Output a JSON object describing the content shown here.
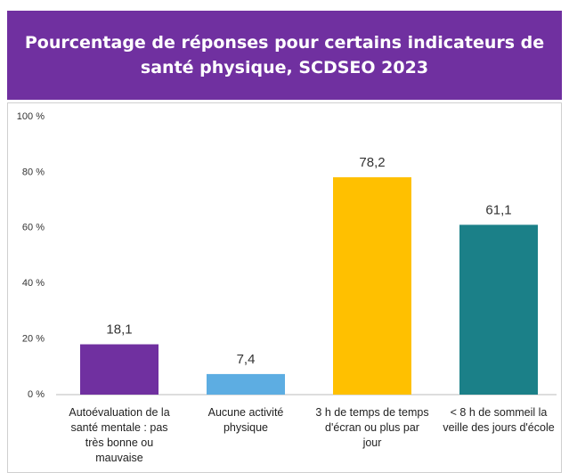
{
  "chart_data": {
    "type": "bar",
    "title": "Pourcentage de réponses pour certains indicateurs de santé physique, SCDSEO 2023",
    "categories": [
      "Autoévaluation de la santé mentale : pas très bonne ou mauvaise",
      "Aucune activité physique",
      "3 h de temps de temps d'écran ou plus par jour",
      "< 8 h de sommeil la veille des jours d'école"
    ],
    "values": [
      18.1,
      7.4,
      78.2,
      61.1
    ],
    "value_labels": [
      "18,1",
      "7,4",
      "78,2",
      "61,1"
    ],
    "colors": [
      "#7030a0",
      "#5dade2",
      "#ffc000",
      "#1b8088"
    ],
    "ylim": [
      0,
      100
    ],
    "yticks": [
      {
        "value": 0,
        "label": "0 %"
      },
      {
        "value": 20,
        "label": "20 %"
      },
      {
        "value": 40,
        "label": "40 %"
      },
      {
        "value": 60,
        "label": "60 %"
      },
      {
        "value": 80,
        "label": "80 %"
      },
      {
        "value": 100,
        "label": "100 %"
      }
    ],
    "grid": false
  }
}
